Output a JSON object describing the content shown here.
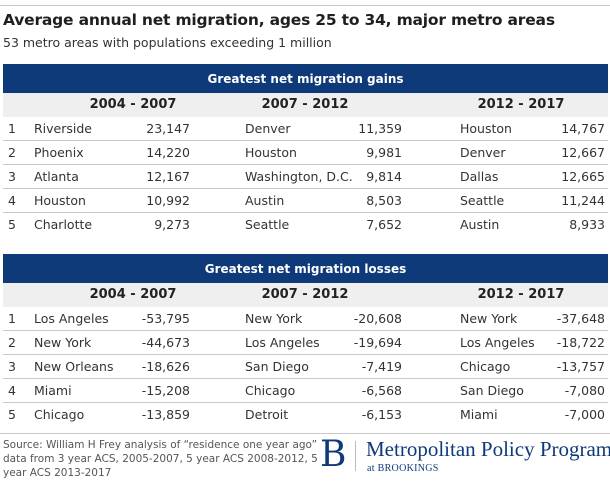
{
  "title": "Average annual net migration, ages 25 to 34, major metro areas",
  "subtitle": "53 metro areas with populations exceeding 1 million",
  "colors": {
    "header_band": "#0f3a7a",
    "period_row": "#efefef",
    "brand": "#0f3a7a"
  },
  "gains": {
    "heading": "Greatest net migration gains",
    "periods": [
      "2004 - 2007",
      "2007 - 2012",
      "2012 - 2017"
    ],
    "rows": [
      {
        "rank": "1",
        "c0_name": "Riverside",
        "c0_value": "23,147",
        "c1_name": "Denver",
        "c1_value": "11,359",
        "c2_name": "Houston",
        "c2_value": "14,767"
      },
      {
        "rank": "2",
        "c0_name": "Phoenix",
        "c0_value": "14,220",
        "c1_name": "Houston",
        "c1_value": "9,981",
        "c2_name": "Denver",
        "c2_value": "12,667"
      },
      {
        "rank": "3",
        "c0_name": "Atlanta",
        "c0_value": "12,167",
        "c1_name": "Washington, D.C.",
        "c1_value": "9,814",
        "c2_name": "Dallas",
        "c2_value": "12,665"
      },
      {
        "rank": "4",
        "c0_name": "Houston",
        "c0_value": "10,992",
        "c1_name": "Austin",
        "c1_value": "8,503",
        "c2_name": "Seattle",
        "c2_value": "11,244"
      },
      {
        "rank": "5",
        "c0_name": "Charlotte",
        "c0_value": "9,273",
        "c1_name": "Seattle",
        "c1_value": "7,652",
        "c2_name": "Austin",
        "c2_value": "8,933"
      }
    ]
  },
  "losses": {
    "heading": "Greatest net migration losses",
    "periods": [
      "2004 - 2007",
      "2007 - 2012",
      "2012 - 2017"
    ],
    "rows": [
      {
        "rank": "1",
        "c0_name": "Los Angeles",
        "c0_value": "-53,795",
        "c1_name": "New York",
        "c1_value": "-20,608",
        "c2_name": "New York",
        "c2_value": "-37,648"
      },
      {
        "rank": "2",
        "c0_name": "New York",
        "c0_value": "-44,673",
        "c1_name": "Los Angeles",
        "c1_value": "-19,694",
        "c2_name": "Los Angeles",
        "c2_value": "-18,722"
      },
      {
        "rank": "3",
        "c0_name": "New Orleans",
        "c0_value": "-18,626",
        "c1_name": "San Diego",
        "c1_value": "-7,419",
        "c2_name": "Chicago",
        "c2_value": "-13,757"
      },
      {
        "rank": "4",
        "c0_name": "Miami",
        "c0_value": "-15,208",
        "c1_name": "Chicago",
        "c1_value": "-6,568",
        "c2_name": "San Diego",
        "c2_value": "-7,080"
      },
      {
        "rank": "5",
        "c0_name": "Chicago",
        "c0_value": "-13,859",
        "c1_name": "Detroit",
        "c1_value": "-6,153",
        "c2_name": "Miami",
        "c2_value": "-7,000"
      }
    ]
  },
  "footer": {
    "source": "Source: William H Frey analysis of “residence one year ago” data from 3 year ACS, 2005-2007, 5 year ACS 2008-2012, 5 year ACS 2013-2017",
    "logo_letter": "B",
    "logo_name": "Metropolitan Policy Program",
    "logo_sub": "at BROOKINGS"
  }
}
